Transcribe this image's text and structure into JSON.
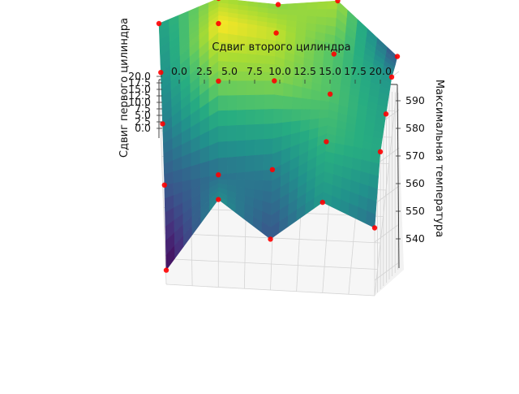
{
  "chart_data": {
    "type": "surface3d",
    "xlabel": "Сдвиг второго цилиндра",
    "ylabel": "Сдвиг первого цилиндра",
    "zlabel": "Максимальная температура",
    "x_ticks": [
      "0.0",
      "2.5",
      "5.0",
      "7.5",
      "10.0",
      "12.5",
      "15.0",
      "17.5",
      "20.0"
    ],
    "y_ticks": [
      "0.0",
      "2.5",
      "5.0",
      "7.5",
      "10.0",
      "12.5",
      "15.0",
      "17.5",
      "20.0"
    ],
    "z_ticks": [
      "540",
      "550",
      "560",
      "570",
      "580",
      "590"
    ],
    "xlim": [
      0,
      20
    ],
    "ylim": [
      0,
      20
    ],
    "zlim": [
      536,
      596
    ],
    "colormap": "viridis",
    "point_color": "#ff0000",
    "x": [
      0,
      5,
      10,
      15,
      20
    ],
    "y": [
      0,
      5,
      10,
      15,
      20
    ],
    "z": [
      [
        541,
        567,
        554,
        568,
        560
      ],
      [
        555,
        560,
        563,
        575,
        572
      ],
      [
        562,
        582,
        583,
        578,
        570
      ],
      [
        566,
        592,
        588,
        578,
        567
      ],
      [
        570,
        586,
        583,
        586,
        553
      ]
    ]
  }
}
